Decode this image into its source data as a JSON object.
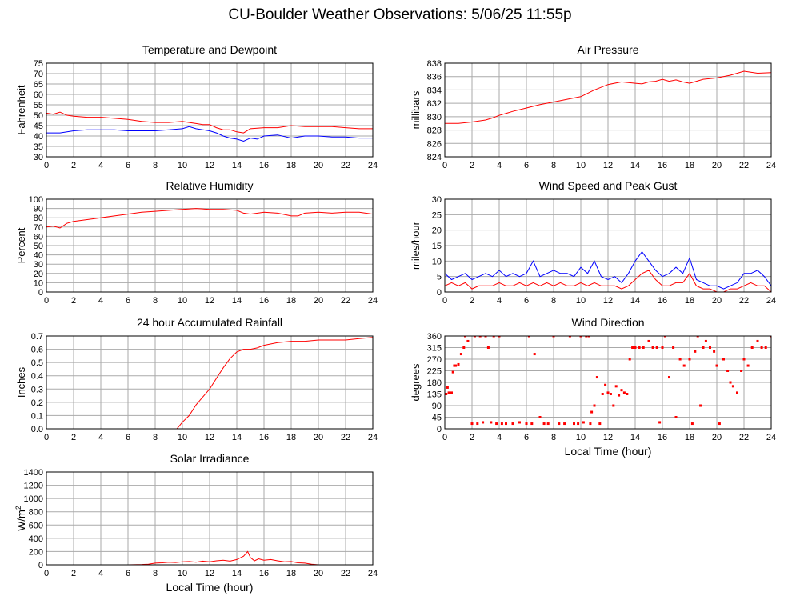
{
  "page": {
    "title": "CU-Boulder Weather Observations: 5/06/25 11:55p"
  },
  "colors": {
    "red": "#ff0000",
    "blue": "#0000ff",
    "grid": "#aaaaaa",
    "frame": "#000000"
  },
  "chart_data": [
    {
      "id": "temp",
      "type": "line",
      "title": "Temperature and Dewpoint",
      "xlabel": "",
      "ylabel": "Fahrenheit",
      "xlim": [
        0,
        24
      ],
      "ylim": [
        30,
        75
      ],
      "xticks": [
        0,
        2,
        4,
        6,
        8,
        10,
        12,
        14,
        16,
        18,
        20,
        22,
        24
      ],
      "yticks": [
        30,
        35,
        40,
        45,
        50,
        55,
        60,
        65,
        70,
        75
      ],
      "grid": true,
      "series": [
        {
          "color": "#ff0000",
          "x": [
            0,
            0.5,
            1,
            1.5,
            2,
            3,
            4,
            5,
            6,
            7,
            8,
            9,
            10,
            10.5,
            11,
            11.5,
            12,
            12.5,
            13,
            13.5,
            14,
            14.5,
            15,
            16,
            17,
            18,
            19,
            20,
            21,
            22,
            23,
            24
          ],
          "y": [
            51,
            50.5,
            51.5,
            50,
            49.5,
            49,
            49,
            48.5,
            48,
            47,
            46.5,
            46.5,
            47,
            46.5,
            46,
            45.5,
            45.5,
            44,
            43,
            43,
            42,
            41.5,
            43.5,
            44,
            44,
            45,
            44.5,
            44.5,
            44.5,
            44,
            43.5,
            43.5
          ]
        },
        {
          "color": "#0000ff",
          "x": [
            0,
            1,
            2,
            3,
            4,
            5,
            6,
            7,
            8,
            9,
            10,
            10.5,
            11,
            11.5,
            12,
            12.5,
            13,
            13.5,
            14,
            14.5,
            15,
            15.5,
            16,
            17,
            18,
            19,
            20,
            21,
            22,
            23,
            24
          ],
          "y": [
            41.5,
            41.5,
            42.5,
            43,
            43,
            43,
            42.5,
            42.5,
            42.5,
            43,
            43.5,
            44.5,
            43.5,
            43,
            42.5,
            41.5,
            40,
            39,
            38.5,
            37.5,
            39,
            38.5,
            40,
            40.5,
            39,
            40,
            40,
            39.5,
            39.5,
            39,
            39
          ]
        }
      ]
    },
    {
      "id": "pressure",
      "type": "line",
      "title": "Air Pressure",
      "xlabel": "",
      "ylabel": "millibars",
      "xlim": [
        0,
        24
      ],
      "ylim": [
        824,
        838
      ],
      "xticks": [
        0,
        2,
        4,
        6,
        8,
        10,
        12,
        14,
        16,
        18,
        20,
        22,
        24
      ],
      "yticks": [
        824,
        826,
        828,
        830,
        832,
        834,
        836,
        838
      ],
      "grid": true,
      "series": [
        {
          "color": "#ff0000",
          "x": [
            0,
            1,
            2,
            3,
            3.5,
            4,
            5,
            6,
            7,
            8,
            9,
            10,
            11,
            12,
            13,
            14,
            14.5,
            15,
            15.5,
            16,
            16.5,
            17,
            17.5,
            18,
            18.5,
            19,
            20,
            21,
            22,
            23,
            24
          ],
          "y": [
            829,
            829,
            829.2,
            829.5,
            829.8,
            830.2,
            830.8,
            831.3,
            831.8,
            832.2,
            832.6,
            833,
            834,
            834.8,
            835.2,
            835,
            834.9,
            835.2,
            835.3,
            835.6,
            835.3,
            835.5,
            835.2,
            835,
            835.3,
            835.6,
            835.8,
            836.2,
            836.8,
            836.5,
            836.6
          ]
        }
      ]
    },
    {
      "id": "humidity",
      "type": "line",
      "title": "Relative Humidity",
      "xlabel": "",
      "ylabel": "Percent",
      "xlim": [
        0,
        24
      ],
      "ylim": [
        0,
        100
      ],
      "xticks": [
        0,
        2,
        4,
        6,
        8,
        10,
        12,
        14,
        16,
        18,
        20,
        22,
        24
      ],
      "yticks": [
        0,
        10,
        20,
        30,
        40,
        50,
        60,
        70,
        80,
        90,
        100
      ],
      "grid": true,
      "series": [
        {
          "color": "#ff0000",
          "x": [
            0,
            0.5,
            1,
            1.5,
            2,
            3,
            4,
            5,
            6,
            7,
            8,
            9,
            10,
            11,
            12,
            13,
            14,
            14.5,
            15,
            16,
            17,
            18,
            18.5,
            19,
            20,
            21,
            22,
            23,
            24
          ],
          "y": [
            70,
            71,
            69,
            74,
            76,
            78,
            80,
            82,
            84,
            86,
            87,
            88,
            89,
            90,
            89,
            89,
            88,
            85,
            84,
            86,
            85,
            82,
            82,
            85,
            86,
            85,
            86,
            86,
            84
          ]
        }
      ]
    },
    {
      "id": "wind",
      "type": "line",
      "title": "Wind Speed and Peak Gust",
      "xlabel": "",
      "ylabel": "miles/hour",
      "xlim": [
        0,
        24
      ],
      "ylim": [
        0,
        30
      ],
      "xticks": [
        0,
        2,
        4,
        6,
        8,
        10,
        12,
        14,
        16,
        18,
        20,
        22,
        24
      ],
      "yticks": [
        0,
        5,
        10,
        15,
        20,
        25,
        30
      ],
      "grid": true,
      "series": [
        {
          "color": "#0000ff",
          "x": [
            0,
            0.5,
            1,
            1.5,
            2,
            2.5,
            3,
            3.5,
            4,
            4.5,
            5,
            5.5,
            6,
            6.5,
            7,
            7.5,
            8,
            8.5,
            9,
            9.5,
            10,
            10.5,
            11,
            11.5,
            12,
            12.5,
            13,
            13.5,
            14,
            14.5,
            15,
            15.5,
            16,
            16.5,
            17,
            17.5,
            18,
            18.5,
            19,
            19.5,
            20,
            20.5,
            21,
            21.5,
            22,
            22.5,
            23,
            23.5,
            24
          ],
          "y": [
            6,
            4,
            5,
            6,
            4,
            5,
            6,
            5,
            7,
            5,
            6,
            5,
            6,
            10,
            5,
            6,
            7,
            6,
            6,
            5,
            8,
            6,
            10,
            5,
            4,
            5,
            3,
            6,
            10,
            13,
            10,
            7,
            5,
            6,
            8,
            6,
            11,
            4,
            3,
            2,
            2,
            1,
            2,
            3,
            6,
            6,
            7,
            5,
            2
          ]
        },
        {
          "color": "#ff0000",
          "x": [
            0,
            0.5,
            1,
            1.5,
            2,
            2.5,
            3,
            3.5,
            4,
            4.5,
            5,
            5.5,
            6,
            6.5,
            7,
            7.5,
            8,
            8.5,
            9,
            9.5,
            10,
            10.5,
            11,
            11.5,
            12,
            12.5,
            13,
            13.5,
            14,
            14.5,
            15,
            15.5,
            16,
            16.5,
            17,
            17.5,
            18,
            18.5,
            19,
            19.5,
            20,
            20.5,
            21,
            21.5,
            22,
            22.5,
            23,
            23.5,
            24
          ],
          "y": [
            2,
            3,
            2,
            3,
            1,
            2,
            2,
            2,
            3,
            2,
            2,
            3,
            2,
            3,
            2,
            3,
            2,
            3,
            2,
            2,
            3,
            2,
            3,
            2,
            2,
            2,
            1,
            2,
            4,
            6,
            7,
            4,
            2,
            2,
            3,
            3,
            6,
            2,
            1,
            1,
            0,
            0,
            1,
            1,
            2,
            3,
            2,
            2,
            0
          ]
        }
      ]
    },
    {
      "id": "rain",
      "type": "line",
      "title": "24 hour Accumulated Rainfall",
      "xlabel": "",
      "ylabel": "Inches",
      "xlim": [
        0,
        24
      ],
      "ylim": [
        0,
        0.7
      ],
      "xticks": [
        0,
        2,
        4,
        6,
        8,
        10,
        12,
        14,
        16,
        18,
        20,
        22,
        24
      ],
      "yticks": [
        0,
        0.1,
        0.2,
        0.3,
        0.4,
        0.5,
        0.6,
        0.7
      ],
      "ytick_labels": [
        "0.0",
        "0.1",
        "0.2",
        "0.3",
        "0.4",
        "0.5",
        "0.6",
        "0.7"
      ],
      "grid": true,
      "series": [
        {
          "color": "#ff0000",
          "x": [
            0,
            9.6,
            10,
            10.5,
            11,
            11.5,
            12,
            12.5,
            13,
            13.5,
            14,
            14.5,
            15,
            15.5,
            16,
            17,
            18,
            19,
            20,
            21,
            22,
            23,
            24
          ],
          "y": [
            0,
            0,
            0.05,
            0.1,
            0.18,
            0.24,
            0.3,
            0.38,
            0.46,
            0.53,
            0.58,
            0.6,
            0.6,
            0.61,
            0.63,
            0.65,
            0.66,
            0.66,
            0.67,
            0.67,
            0.67,
            0.68,
            0.69
          ]
        }
      ]
    },
    {
      "id": "direction",
      "type": "scatter",
      "title": "Wind Direction",
      "xlabel": "Local Time (hour)",
      "ylabel": "degrees",
      "xlim": [
        0,
        24
      ],
      "ylim": [
        0,
        360
      ],
      "xticks": [
        0,
        2,
        4,
        6,
        8,
        10,
        12,
        14,
        16,
        18,
        20,
        22,
        24
      ],
      "yticks": [
        0,
        45,
        90,
        135,
        180,
        225,
        270,
        315,
        360
      ],
      "grid": true,
      "series": [
        {
          "color": "#ff0000",
          "x": [
            0.1,
            0.2,
            0.3,
            0.5,
            0.6,
            0.7,
            0.8,
            1.0,
            1.2,
            1.4,
            1.5,
            1.7,
            2.0,
            2.2,
            2.4,
            2.6,
            2.8,
            3.0,
            3.2,
            3.4,
            3.6,
            3.8,
            4.0,
            4.2,
            4.5,
            5.0,
            5.5,
            6.0,
            6.2,
            6.4,
            6.6,
            7.0,
            7.3,
            7.6,
            8.0,
            8.4,
            8.8,
            9.2,
            9.5,
            9.8,
            10.0,
            10.2,
            10.4,
            10.6,
            10.7,
            10.8,
            11.0,
            11.2,
            11.4,
            11.6,
            11.8,
            12.0,
            12.2,
            12.4,
            12.6,
            12.8,
            13.0,
            13.2,
            13.4,
            13.6,
            13.8,
            14.0,
            14.3,
            14.6,
            15.0,
            15.3,
            15.6,
            15.8,
            16.0,
            16.2,
            16.5,
            16.8,
            17.0,
            17.3,
            17.6,
            18.0,
            18.2,
            18.4,
            18.6,
            18.8,
            19.0,
            19.2,
            19.5,
            19.8,
            20.0,
            20.2,
            20.5,
            20.8,
            21.0,
            21.2,
            21.5,
            21.8,
            22.0,
            22.3,
            22.6,
            23.0,
            23.3,
            23.6,
            24.0
          ],
          "y": [
            135,
            160,
            140,
            140,
            220,
            245,
            245,
            250,
            290,
            315,
            360,
            340,
            20,
            360,
            20,
            360,
            25,
            360,
            315,
            25,
            360,
            20,
            360,
            20,
            20,
            20,
            25,
            20,
            360,
            20,
            290,
            45,
            20,
            20,
            360,
            20,
            20,
            360,
            20,
            20,
            360,
            25,
            360,
            360,
            20,
            65,
            90,
            200,
            20,
            135,
            170,
            140,
            135,
            90,
            165,
            130,
            150,
            140,
            135,
            270,
            315,
            315,
            315,
            315,
            340,
            315,
            315,
            25,
            315,
            360,
            200,
            315,
            45,
            270,
            245,
            270,
            20,
            300,
            360,
            90,
            315,
            340,
            315,
            300,
            245,
            20,
            270,
            225,
            180,
            165,
            140,
            225,
            270,
            245,
            315,
            340,
            315,
            315,
            360
          ]
        }
      ]
    },
    {
      "id": "solar",
      "type": "line",
      "title": "Solar Irradiance",
      "xlabel": "Local Time (hour)",
      "ylabel": "W/m2",
      "xlim": [
        0,
        24
      ],
      "ylim": [
        0,
        1400
      ],
      "xticks": [
        0,
        2,
        4,
        6,
        8,
        10,
        12,
        14,
        16,
        18,
        20,
        22,
        24
      ],
      "yticks": [
        0,
        200,
        400,
        600,
        800,
        1000,
        1200,
        1400
      ],
      "grid": true,
      "series": [
        {
          "color": "#ff0000",
          "x": [
            0,
            6,
            7,
            7.5,
            8,
            8.5,
            9,
            9.5,
            10,
            10.5,
            11,
            11.5,
            12,
            12.5,
            13,
            13.5,
            14,
            14.5,
            14.8,
            15,
            15.3,
            15.6,
            16,
            16.5,
            17,
            17.5,
            18,
            18.5,
            19,
            19.5,
            20,
            24
          ],
          "y": [
            0,
            0,
            5,
            10,
            25,
            30,
            40,
            35,
            45,
            50,
            40,
            55,
            45,
            60,
            70,
            55,
            80,
            130,
            200,
            110,
            60,
            90,
            70,
            80,
            60,
            45,
            50,
            30,
            25,
            10,
            0,
            0
          ]
        }
      ]
    }
  ]
}
